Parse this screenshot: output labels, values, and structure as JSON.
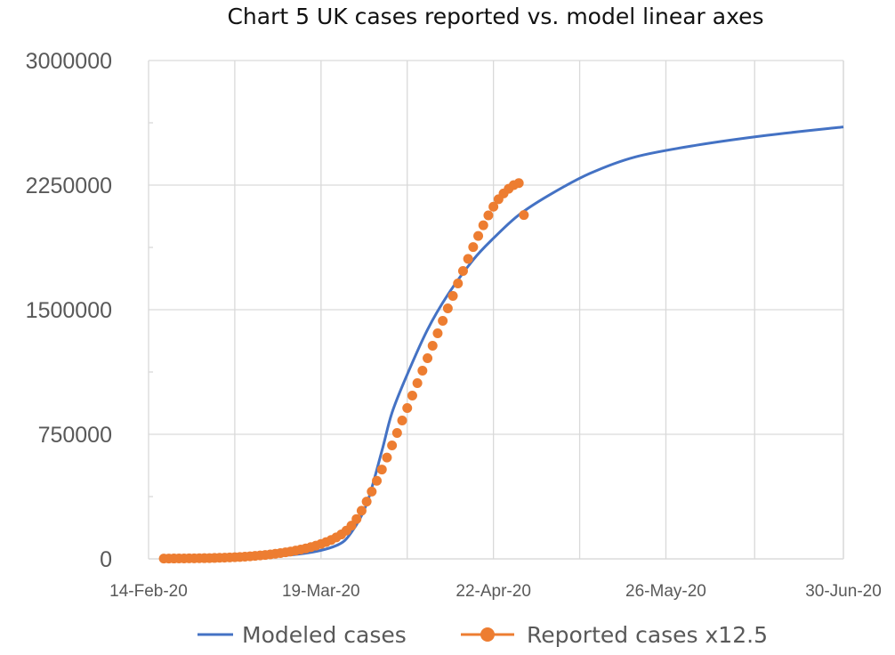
{
  "chart_data": {
    "type": "line",
    "title": "Chart 5 UK cases reported vs. model linear axes",
    "xlabel": "",
    "ylabel": "",
    "x_ticks": [
      "14-Feb-20",
      "19-Mar-20",
      "22-Apr-20",
      "26-May-20",
      "30-Jun-20"
    ],
    "y_ticks": [
      "0",
      "750000",
      "1500000",
      "2250000",
      "3000000"
    ],
    "ylim": [
      0,
      3000000
    ],
    "xlim": [
      "2020-02-14",
      "2020-06-30"
    ],
    "grid": true,
    "legend_position": "bottom",
    "series": [
      {
        "name": "Modeled cases",
        "style": "line",
        "color": "#4472C4",
        "x": [
          "2020-02-17",
          "2020-03-05",
          "2020-03-15",
          "2020-03-22",
          "2020-03-25",
          "2020-03-28",
          "2020-03-31",
          "2020-04-02",
          "2020-04-05",
          "2020-04-09",
          "2020-04-13",
          "2020-04-18",
          "2020-04-22",
          "2020-04-27",
          "2020-05-03",
          "2020-05-11",
          "2020-05-20",
          "2020-06-01",
          "2020-06-15",
          "2020-06-30"
        ],
        "y": [
          5000,
          12000,
          30000,
          80000,
          160000,
          330000,
          650000,
          880000,
          1110000,
          1380000,
          1590000,
          1800000,
          1930000,
          2070000,
          2190000,
          2320000,
          2420000,
          2490000,
          2550000,
          2600000
        ]
      },
      {
        "name": "Reported cases x12.5",
        "style": "markers",
        "color": "#ED7D31",
        "x": [
          "2020-02-17",
          "2020-02-18",
          "2020-02-19",
          "2020-02-20",
          "2020-02-21",
          "2020-02-22",
          "2020-02-23",
          "2020-02-24",
          "2020-02-25",
          "2020-02-26",
          "2020-02-27",
          "2020-02-28",
          "2020-02-29",
          "2020-03-01",
          "2020-03-02",
          "2020-03-03",
          "2020-03-04",
          "2020-03-05",
          "2020-03-06",
          "2020-03-07",
          "2020-03-08",
          "2020-03-09",
          "2020-03-10",
          "2020-03-11",
          "2020-03-12",
          "2020-03-13",
          "2020-03-14",
          "2020-03-15",
          "2020-03-16",
          "2020-03-17",
          "2020-03-18",
          "2020-03-19",
          "2020-03-20",
          "2020-03-21",
          "2020-03-22",
          "2020-03-23",
          "2020-03-24",
          "2020-03-25",
          "2020-03-26",
          "2020-03-27",
          "2020-03-28",
          "2020-03-29",
          "2020-03-30",
          "2020-03-31",
          "2020-04-01",
          "2020-04-02",
          "2020-04-03",
          "2020-04-04",
          "2020-04-05",
          "2020-04-06",
          "2020-04-07",
          "2020-04-08",
          "2020-04-09",
          "2020-04-10",
          "2020-04-11",
          "2020-04-12",
          "2020-04-13",
          "2020-04-14",
          "2020-04-15",
          "2020-04-16",
          "2020-04-17",
          "2020-04-18",
          "2020-04-19",
          "2020-04-20",
          "2020-04-21",
          "2020-04-22",
          "2020-04-23",
          "2020-04-24",
          "2020-04-25",
          "2020-04-26",
          "2020-04-27",
          "2020-04-28"
        ],
        "y": [
          2000,
          2200,
          2400,
          2600,
          2900,
          3200,
          3500,
          3900,
          4400,
          5000,
          5700,
          6500,
          7500,
          8700,
          10100,
          11700,
          13500,
          15600,
          18000,
          20700,
          23700,
          27000,
          30700,
          34800,
          39300,
          44200,
          50000,
          56000,
          63000,
          71000,
          80000,
          90000,
          101000,
          114000,
          129000,
          147000,
          170000,
          200000,
          240000,
          290000,
          345000,
          405000,
          470000,
          538000,
          610000,
          683000,
          758000,
          833000,
          908000,
          983000,
          1058000,
          1133000,
          1208000,
          1283000,
          1358000,
          1433000,
          1508000,
          1583000,
          1658000,
          1733000,
          1806000,
          1877000,
          1944000,
          2008000,
          2068000,
          2120000,
          2165000,
          2200000,
          2228000,
          2250000,
          2262000,
          2070000
        ]
      }
    ]
  }
}
